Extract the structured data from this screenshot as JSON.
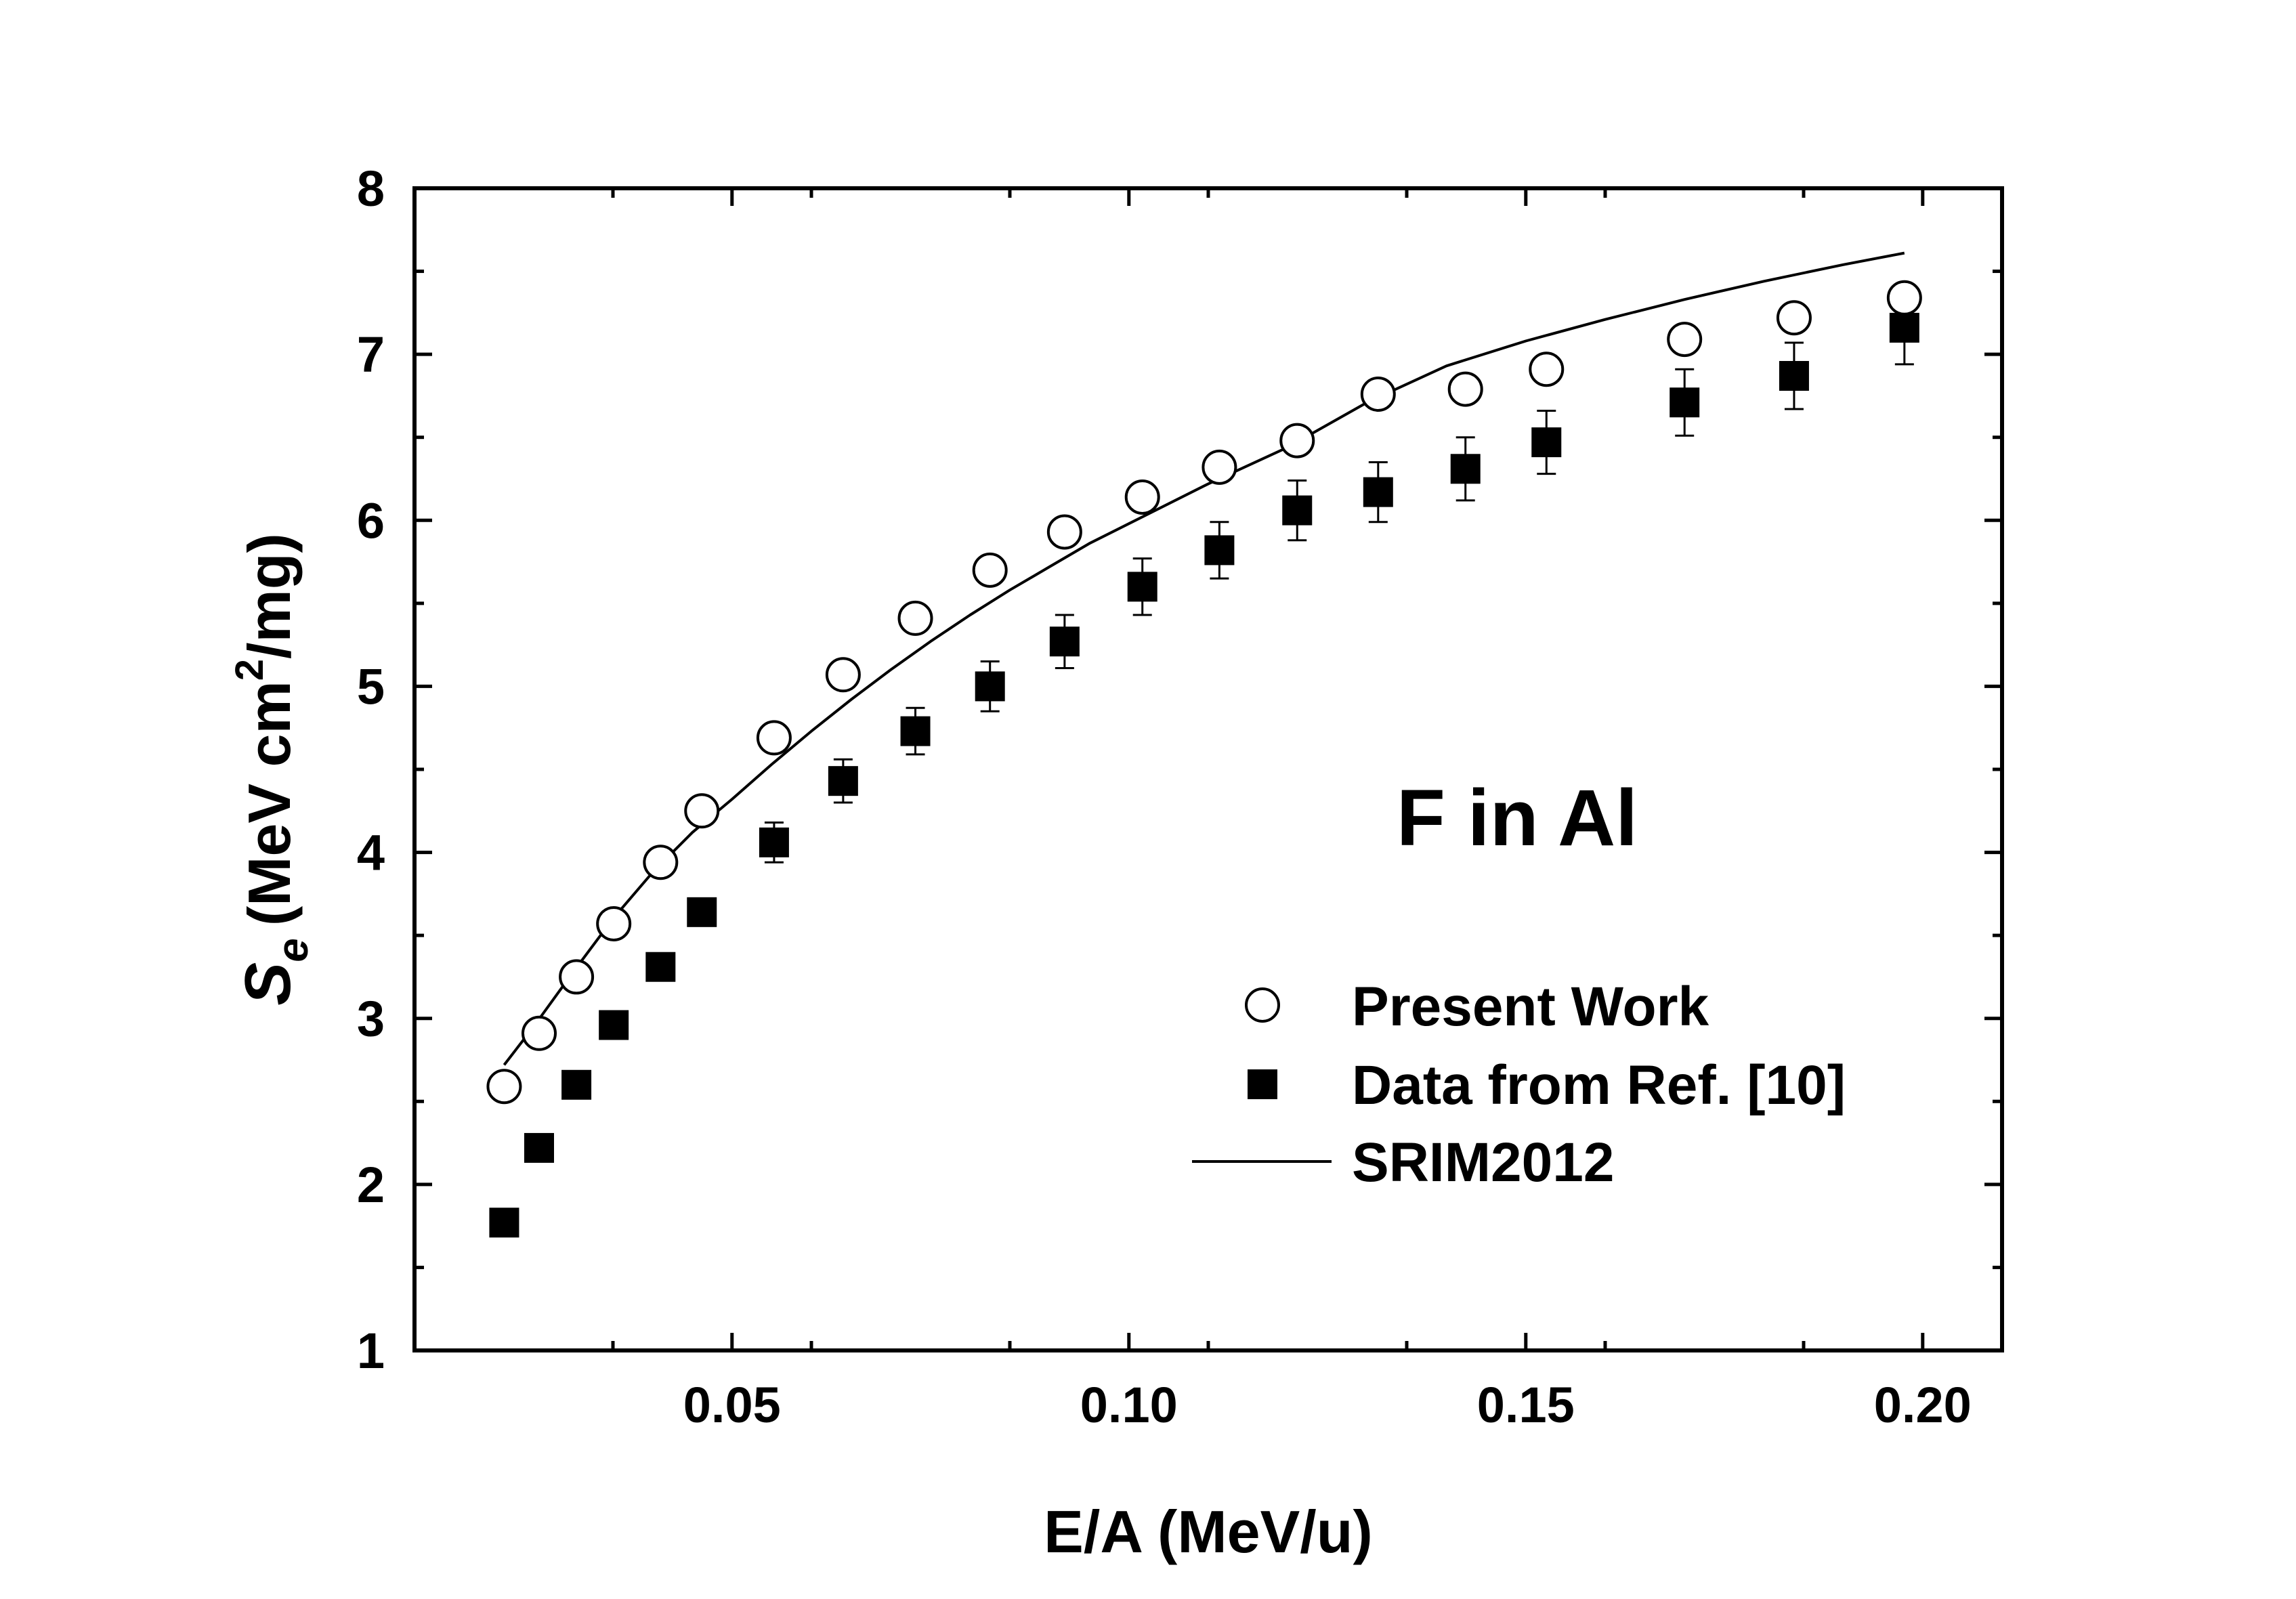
{
  "chart_data": {
    "type": "scatter",
    "title": "",
    "annotation": "F in Al",
    "xlabel": "E/A (MeV/u)",
    "ylabel": {
      "symbol": "S",
      "subscript": "e",
      "units_before": "(MeV cm",
      "superscript": "2",
      "units_after": "/mg)"
    },
    "xlim": [
      0.01,
      0.21
    ],
    "ylim": [
      1,
      8
    ],
    "x_ticks": [
      0.05,
      0.1,
      0.15,
      0.2
    ],
    "x_tick_labels": [
      "0.05",
      "0.10",
      "0.15",
      "0.20"
    ],
    "x_minor_step": 0.025,
    "y_ticks": [
      1,
      2,
      3,
      4,
      5,
      6,
      7,
      8
    ],
    "y_tick_labels": [
      "1",
      "2",
      "3",
      "4",
      "5",
      "6",
      "7",
      "8"
    ],
    "y_minor_step": 0.5,
    "grid": false,
    "legend": "lower-right",
    "series": [
      {
        "name": "Present Work",
        "marker": "open-circle",
        "x": [
          0.0213,
          0.0257,
          0.0304,
          0.0351,
          0.041,
          0.0462,
          0.0553,
          0.064,
          0.0731,
          0.0825,
          0.0919,
          0.1017,
          0.1114,
          0.1212,
          0.1314,
          0.1424,
          0.1526,
          0.17,
          0.1838,
          0.1977
        ],
        "y": [
          2.59,
          2.91,
          3.25,
          3.57,
          3.94,
          4.25,
          4.69,
          5.07,
          5.41,
          5.7,
          5.93,
          6.14,
          6.32,
          6.48,
          6.76,
          6.79,
          6.91,
          7.09,
          7.22,
          7.34
        ]
      },
      {
        "name": "Data from Ref. [10]",
        "marker": "filled-square",
        "x": [
          0.0213,
          0.0257,
          0.0304,
          0.0351,
          0.041,
          0.0462,
          0.0553,
          0.064,
          0.0731,
          0.0825,
          0.0919,
          0.1017,
          0.1114,
          0.1212,
          0.1314,
          0.1424,
          0.1526,
          0.17,
          0.1838,
          0.1977
        ],
        "y": [
          1.77,
          2.22,
          2.6,
          2.96,
          3.31,
          3.64,
          4.06,
          4.43,
          4.73,
          5.0,
          5.27,
          5.6,
          5.82,
          6.06,
          6.17,
          6.31,
          6.47,
          6.71,
          6.87,
          7.16
        ],
        "error": [
          0.0,
          0.0,
          0.0,
          0.0,
          0.0,
          0.08,
          0.12,
          0.13,
          0.14,
          0.15,
          0.16,
          0.17,
          0.17,
          0.18,
          0.18,
          0.19,
          0.19,
          0.2,
          0.2,
          0.22
        ]
      },
      {
        "name": "SRIM2012",
        "marker": "line",
        "x": [
          0.0213,
          0.025,
          0.03,
          0.035,
          0.04,
          0.045,
          0.05,
          0.055,
          0.06,
          0.065,
          0.07,
          0.075,
          0.08,
          0.085,
          0.09,
          0.095,
          0.1,
          0.11,
          0.12,
          0.13,
          0.14,
          0.15,
          0.16,
          0.17,
          0.18,
          0.19,
          0.1977
        ],
        "y": [
          2.72,
          2.95,
          3.28,
          3.6,
          3.88,
          4.12,
          4.32,
          4.53,
          4.73,
          4.92,
          5.1,
          5.27,
          5.43,
          5.58,
          5.72,
          5.86,
          5.98,
          6.22,
          6.44,
          6.71,
          6.93,
          7.08,
          7.21,
          7.33,
          7.44,
          7.54,
          7.61
        ]
      }
    ]
  },
  "style": {
    "line_color": "#000000",
    "marker_fill": "#000000",
    "open_marker_fill": "#ffffff",
    "background": "#ffffff"
  }
}
